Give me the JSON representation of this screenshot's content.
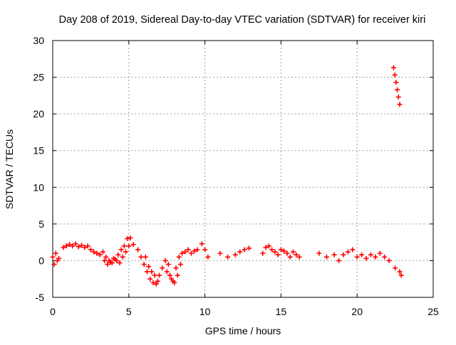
{
  "chart_data": {
    "type": "scatter",
    "title": "Day 208 of 2019, Sidereal Day-to-day VTEC variation (SDTVAR) for receiver kiri",
    "xlabel": "GPS time / hours",
    "ylabel": "SDTVAR / TECUs",
    "xlim": [
      0,
      25
    ],
    "ylim": [
      -5,
      30
    ],
    "xticks": [
      0,
      5,
      10,
      15,
      20,
      25
    ],
    "yticks": [
      -5,
      0,
      5,
      10,
      15,
      20,
      25,
      30
    ],
    "grid": true,
    "marker": "+",
    "color": "#ff0000",
    "series": [
      {
        "name": "SDTVAR",
        "x": [
          0.0,
          0.1,
          0.2,
          0.3,
          0.4,
          0.7,
          0.9,
          1.1,
          1.3,
          1.5,
          1.7,
          1.9,
          2.1,
          2.3,
          2.5,
          2.7,
          2.9,
          3.1,
          3.3,
          3.5,
          3.7,
          3.9,
          4.1,
          4.3,
          4.5,
          4.7,
          4.9,
          5.1,
          5.3,
          3.4,
          3.6,
          3.8,
          4.0,
          4.2,
          4.4,
          4.6,
          4.8,
          5.0,
          5.6,
          5.8,
          6.0,
          6.2,
          6.4,
          6.6,
          6.8,
          7.0,
          6.1,
          6.3,
          6.5,
          6.7,
          6.9,
          7.2,
          7.4,
          7.6,
          7.8,
          8.0,
          8.2,
          8.4,
          7.5,
          7.7,
          7.9,
          8.1,
          8.3,
          8.5,
          8.7,
          8.9,
          9.1,
          9.3,
          9.5,
          9.8,
          10.0,
          10.2,
          11.0,
          11.5,
          12.0,
          12.3,
          12.6,
          12.9,
          13.8,
          14.0,
          14.2,
          14.4,
          14.6,
          14.8,
          15.0,
          15.2,
          15.4,
          15.6,
          15.8,
          16.0,
          16.2,
          17.5,
          18.0,
          18.5,
          18.8,
          19.1,
          19.4,
          19.7,
          20.0,
          20.3,
          20.6,
          20.9,
          21.2,
          21.5,
          21.8,
          22.1,
          22.5,
          22.8,
          22.9,
          22.4,
          22.48,
          22.56,
          22.64,
          22.72,
          22.8
        ],
        "y": [
          0.5,
          -0.5,
          1.0,
          0.0,
          0.3,
          1.8,
          2.0,
          2.2,
          2.0,
          2.3,
          1.9,
          2.1,
          1.8,
          2.0,
          1.5,
          1.2,
          1.0,
          0.8,
          1.2,
          0.5,
          0.0,
          -0.3,
          0.2,
          0.8,
          1.5,
          2.0,
          3.0,
          3.1,
          2.2,
          0.0,
          -0.5,
          -0.2,
          0.3,
          0.0,
          -0.3,
          0.5,
          1.2,
          2.0,
          1.5,
          0.5,
          -0.5,
          -1.5,
          -2.5,
          -3.0,
          -3.2,
          -2.0,
          0.5,
          -0.8,
          -1.5,
          -2.0,
          -2.8,
          -1.0,
          0.0,
          -0.5,
          -2.5,
          -3.0,
          -2.0,
          -0.5,
          -1.5,
          -2.0,
          -2.8,
          -1.0,
          0.5,
          1.0,
          1.2,
          1.5,
          1.0,
          1.3,
          1.5,
          2.3,
          1.5,
          0.5,
          1.0,
          0.5,
          0.8,
          1.2,
          1.5,
          1.7,
          1.0,
          1.8,
          2.0,
          1.5,
          1.2,
          0.8,
          1.5,
          1.3,
          1.0,
          0.5,
          1.2,
          0.8,
          0.5,
          1.0,
          0.5,
          0.8,
          0.0,
          0.8,
          1.2,
          1.5,
          0.5,
          0.8,
          0.3,
          0.8,
          0.5,
          1.0,
          0.5,
          0.0,
          -1.0,
          -1.5,
          -2.0,
          26.3,
          25.3,
          24.3,
          23.3,
          22.3,
          21.3
        ]
      }
    ]
  }
}
